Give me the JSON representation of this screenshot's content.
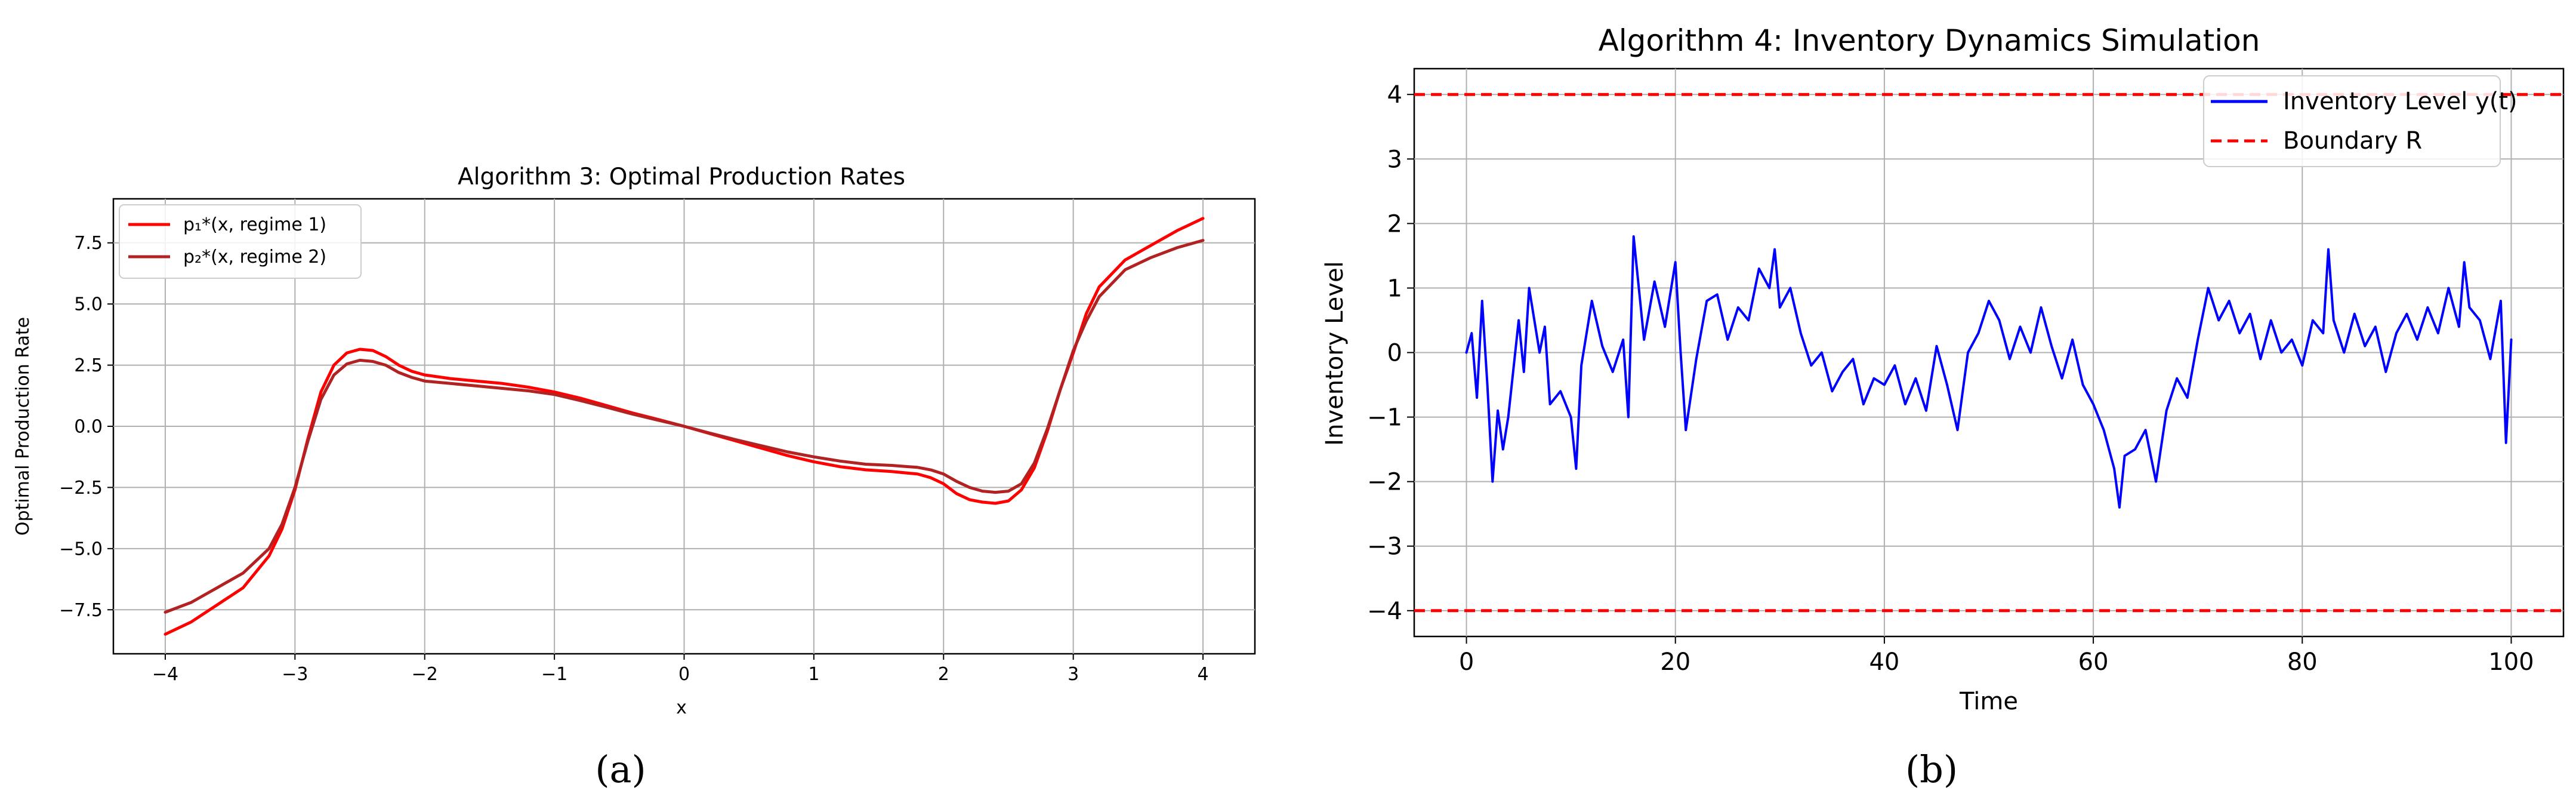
{
  "panels": [
    {
      "label": "(a)"
    },
    {
      "label": "(b)"
    }
  ],
  "chart_data": [
    {
      "type": "line",
      "title": "Algorithm 3: Optimal Production Rates",
      "xlabel": "x",
      "ylabel": "Optimal Production Rate",
      "xlim": [
        -4.4,
        4.4
      ],
      "ylim": [
        -9.3,
        9.3
      ],
      "xticks": [
        -4,
        -3,
        -2,
        -1,
        0,
        1,
        2,
        3,
        4
      ],
      "xtick_labels": [
        "−4",
        "−3",
        "−2",
        "−1",
        "0",
        "1",
        "2",
        "3",
        "4"
      ],
      "yticks": [
        -7.5,
        -5.0,
        -2.5,
        0.0,
        2.5,
        5.0,
        7.5
      ],
      "ytick_labels": [
        "−7.5",
        "−5.0",
        "−2.5",
        "0.0",
        "2.5",
        "5.0",
        "7.5"
      ],
      "grid": true,
      "legend_position": "top-left",
      "x": [
        -4.0,
        -3.8,
        -3.6,
        -3.4,
        -3.2,
        -3.1,
        -3.0,
        -2.9,
        -2.8,
        -2.7,
        -2.6,
        -2.5,
        -2.4,
        -2.3,
        -2.2,
        -2.1,
        -2.0,
        -1.8,
        -1.6,
        -1.4,
        -1.2,
        -1.0,
        -0.8,
        -0.6,
        -0.4,
        -0.2,
        0.0,
        0.2,
        0.4,
        0.6,
        0.8,
        1.0,
        1.2,
        1.4,
        1.6,
        1.8,
        1.9,
        2.0,
        2.1,
        2.2,
        2.3,
        2.4,
        2.5,
        2.6,
        2.7,
        2.8,
        2.9,
        3.0,
        3.1,
        3.2,
        3.4,
        3.6,
        3.8,
        4.0
      ],
      "series": [
        {
          "name": "p₁*(x, regime 1)",
          "color": "#ff0000",
          "values": [
            -8.5,
            -8.0,
            -7.3,
            -6.6,
            -5.3,
            -4.2,
            -2.6,
            -0.5,
            1.4,
            2.5,
            3.0,
            3.15,
            3.1,
            2.85,
            2.5,
            2.25,
            2.1,
            1.95,
            1.85,
            1.75,
            1.6,
            1.4,
            1.15,
            0.85,
            0.55,
            0.28,
            0.0,
            -0.3,
            -0.6,
            -0.9,
            -1.2,
            -1.45,
            -1.65,
            -1.78,
            -1.85,
            -1.95,
            -2.1,
            -2.35,
            -2.75,
            -3.0,
            -3.1,
            -3.15,
            -3.05,
            -2.6,
            -1.7,
            -0.2,
            1.5,
            3.0,
            4.6,
            5.7,
            6.8,
            7.4,
            8.0,
            8.5
          ]
        },
        {
          "name": "p₂*(x, regime 2)",
          "color": "#b22222",
          "values": [
            -7.6,
            -7.2,
            -6.6,
            -6.0,
            -5.0,
            -4.0,
            -2.5,
            -0.6,
            1.1,
            2.1,
            2.55,
            2.7,
            2.65,
            2.5,
            2.2,
            2.0,
            1.85,
            1.75,
            1.65,
            1.55,
            1.45,
            1.3,
            1.05,
            0.78,
            0.5,
            0.25,
            0.0,
            -0.28,
            -0.55,
            -0.8,
            -1.05,
            -1.25,
            -1.42,
            -1.55,
            -1.6,
            -1.68,
            -1.78,
            -1.95,
            -2.25,
            -2.5,
            -2.65,
            -2.7,
            -2.65,
            -2.35,
            -1.5,
            -0.1,
            1.5,
            3.1,
            4.3,
            5.3,
            6.4,
            6.9,
            7.3,
            7.6
          ]
        }
      ]
    },
    {
      "type": "line",
      "title": "Algorithm 4: Inventory Dynamics Simulation",
      "xlabel": "Time",
      "ylabel": "Inventory Level",
      "xlim": [
        -5,
        105
      ],
      "ylim": [
        -4.4,
        4.4
      ],
      "xticks": [
        0,
        20,
        40,
        60,
        80,
        100
      ],
      "xtick_labels": [
        "0",
        "20",
        "40",
        "60",
        "80",
        "100"
      ],
      "yticks": [
        -4,
        -3,
        -2,
        -1,
        0,
        1,
        2,
        3,
        4
      ],
      "ytick_labels": [
        "−4",
        "−3",
        "−2",
        "−1",
        "0",
        "1",
        "2",
        "3",
        "4"
      ],
      "grid": true,
      "legend_position": "top-right",
      "x": [
        0,
        0.5,
        1,
        1.5,
        2,
        2.5,
        3,
        3.5,
        4,
        5,
        5.5,
        6,
        7,
        7.5,
        8,
        9,
        10,
        10.5,
        11,
        12,
        13,
        14,
        15,
        15.5,
        16,
        17,
        18,
        19,
        20,
        20.5,
        21,
        22,
        23,
        24,
        25,
        26,
        27,
        28,
        29,
        29.5,
        30,
        31,
        32,
        33,
        34,
        35,
        36,
        37,
        38,
        39,
        40,
        41,
        42,
        43,
        44,
        45,
        46,
        47,
        48,
        49,
        50,
        51,
        52,
        53,
        54,
        55,
        56,
        57,
        58,
        59,
        60,
        61,
        62,
        62.5,
        63,
        64,
        65,
        66,
        67,
        68,
        69,
        70,
        71,
        72,
        73,
        74,
        75,
        76,
        77,
        78,
        79,
        80,
        81,
        82,
        82.5,
        83,
        84,
        85,
        86,
        87,
        88,
        89,
        90,
        91,
        92,
        93,
        94,
        95,
        95.5,
        96,
        97,
        98,
        99,
        99.5,
        100
      ],
      "series": [
        {
          "name": "Inventory Level y(t)",
          "color": "#0000ff",
          "values": [
            0.0,
            0.3,
            -0.7,
            0.8,
            -0.5,
            -2.0,
            -0.9,
            -1.5,
            -1.0,
            0.5,
            -0.3,
            1.0,
            0.0,
            0.4,
            -0.8,
            -0.6,
            -1.0,
            -1.8,
            -0.2,
            0.8,
            0.1,
            -0.3,
            0.2,
            -1.0,
            1.8,
            0.2,
            1.1,
            0.4,
            1.4,
            0.0,
            -1.2,
            -0.1,
            0.8,
            0.9,
            0.2,
            0.7,
            0.5,
            1.3,
            1.0,
            1.6,
            0.7,
            1.0,
            0.3,
            -0.2,
            0.0,
            -0.6,
            -0.3,
            -0.1,
            -0.8,
            -0.4,
            -0.5,
            -0.2,
            -0.8,
            -0.4,
            -0.9,
            0.1,
            -0.5,
            -1.2,
            0.0,
            0.3,
            0.8,
            0.5,
            -0.1,
            0.4,
            0.0,
            0.7,
            0.1,
            -0.4,
            0.2,
            -0.5,
            -0.8,
            -1.2,
            -1.8,
            -2.4,
            -1.6,
            -1.5,
            -1.2,
            -2.0,
            -0.9,
            -0.4,
            -0.7,
            0.2,
            1.0,
            0.5,
            0.8,
            0.3,
            0.6,
            -0.1,
            0.5,
            0.0,
            0.2,
            -0.2,
            0.5,
            0.3,
            1.6,
            0.5,
            0.0,
            0.6,
            0.1,
            0.4,
            -0.3,
            0.3,
            0.6,
            0.2,
            0.7,
            0.3,
            1.0,
            0.4,
            1.4,
            0.7,
            0.5,
            -0.1,
            0.8,
            -1.4,
            0.2
          ]
        },
        {
          "name": "Boundary R",
          "color": "#ff0000",
          "style": "dashed",
          "levels": [
            4,
            -4
          ]
        }
      ]
    }
  ]
}
